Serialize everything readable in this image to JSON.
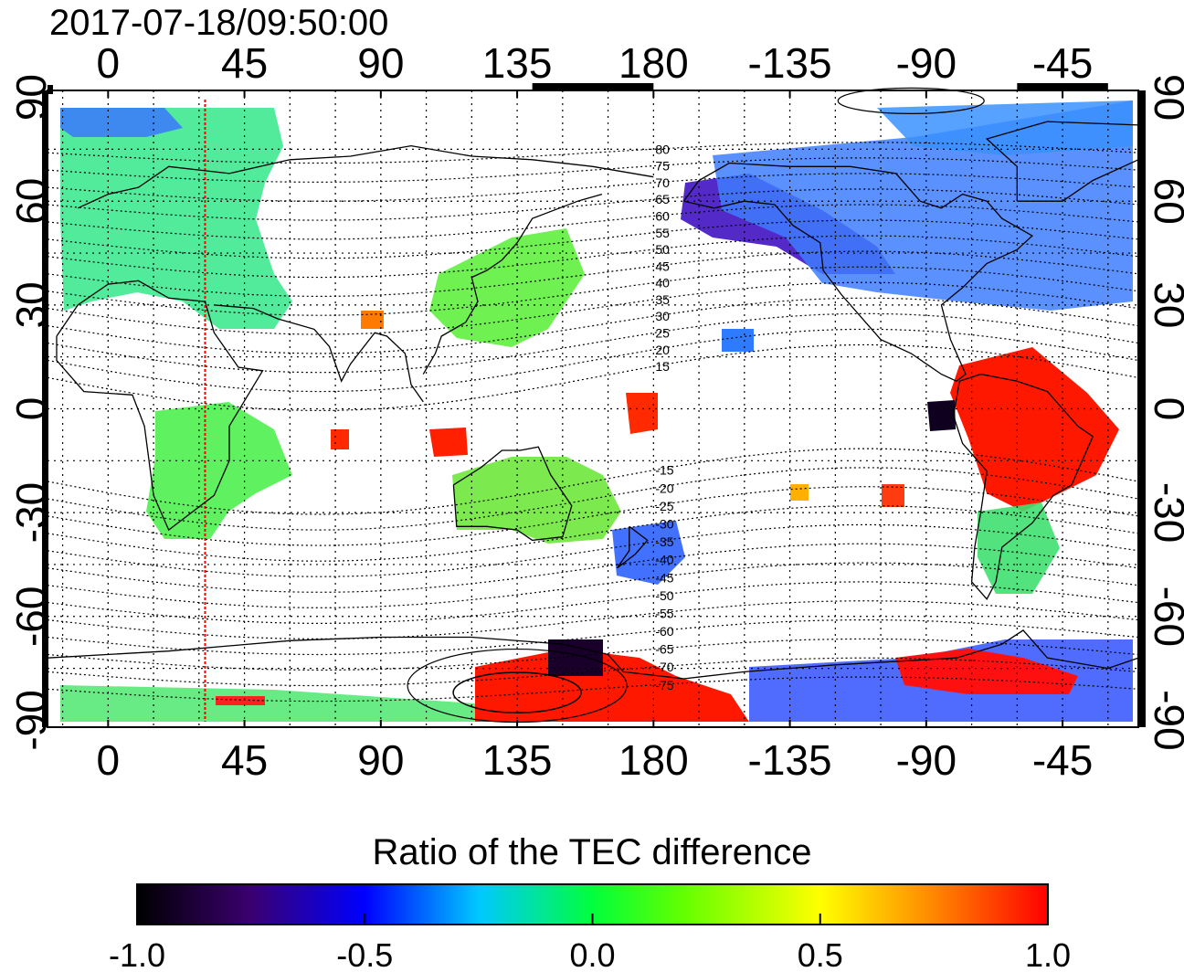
{
  "timestamp": "2017-07-18/09:50:00",
  "map": {
    "top_lon_labels": [
      "0",
      "45",
      "90",
      "135",
      "180",
      "-135",
      "-90",
      "-45"
    ],
    "bottom_lon_labels": [
      "0",
      "45",
      "90",
      "135",
      "180",
      "-135",
      "-90",
      "-45"
    ],
    "left_lat_labels": [
      "90",
      "60",
      "30",
      "0",
      "-30",
      "-60",
      "-90"
    ],
    "right_lat_labels": [
      "90",
      "60",
      "30",
      "0",
      "-30",
      "-60",
      "-90"
    ],
    "lon_ticks": [
      0,
      45,
      90,
      135,
      180,
      225,
      270,
      315
    ],
    "lat_ticks": [
      90,
      60,
      30,
      0,
      -30,
      -60,
      -90
    ],
    "lon_range": [
      -20,
      340
    ],
    "lat_range": [
      -92,
      92
    ],
    "red_meridian_lon": 32,
    "grid": true,
    "maglat_labels_north": [
      "80",
      "75",
      "70",
      "65",
      "60",
      "55",
      "50",
      "45",
      "40",
      "35",
      "30",
      "25",
      "20",
      "15"
    ],
    "maglat_labels_south": [
      "-15",
      "-20",
      "-25",
      "-30",
      "-35",
      "-40",
      "-45",
      "-50",
      "-55",
      "-60",
      "-65",
      "-70",
      "-75"
    ],
    "maglat_values_north": [
      80,
      75,
      70,
      65,
      60,
      55,
      50,
      45,
      40,
      35,
      30,
      25,
      20,
      15
    ],
    "maglat_values_south": [
      -15,
      -20,
      -25,
      -30,
      -35,
      -40,
      -45,
      -50,
      -55,
      -60,
      -65,
      -70,
      -75
    ],
    "maglat_label_lon": 180
  },
  "colorbar": {
    "title": "Ratio of the TEC difference",
    "tick_labels": [
      "-1.0",
      "-0.5",
      "0.0",
      "0.5",
      "1.0"
    ],
    "range": [
      -1.0,
      1.0
    ],
    "stops": [
      "#000000",
      "#3a0070",
      "#0000ff",
      "#00c8ff",
      "#00ff3c",
      "#64ff00",
      "#ffff00",
      "#ff8c00",
      "#ff0000"
    ]
  }
}
